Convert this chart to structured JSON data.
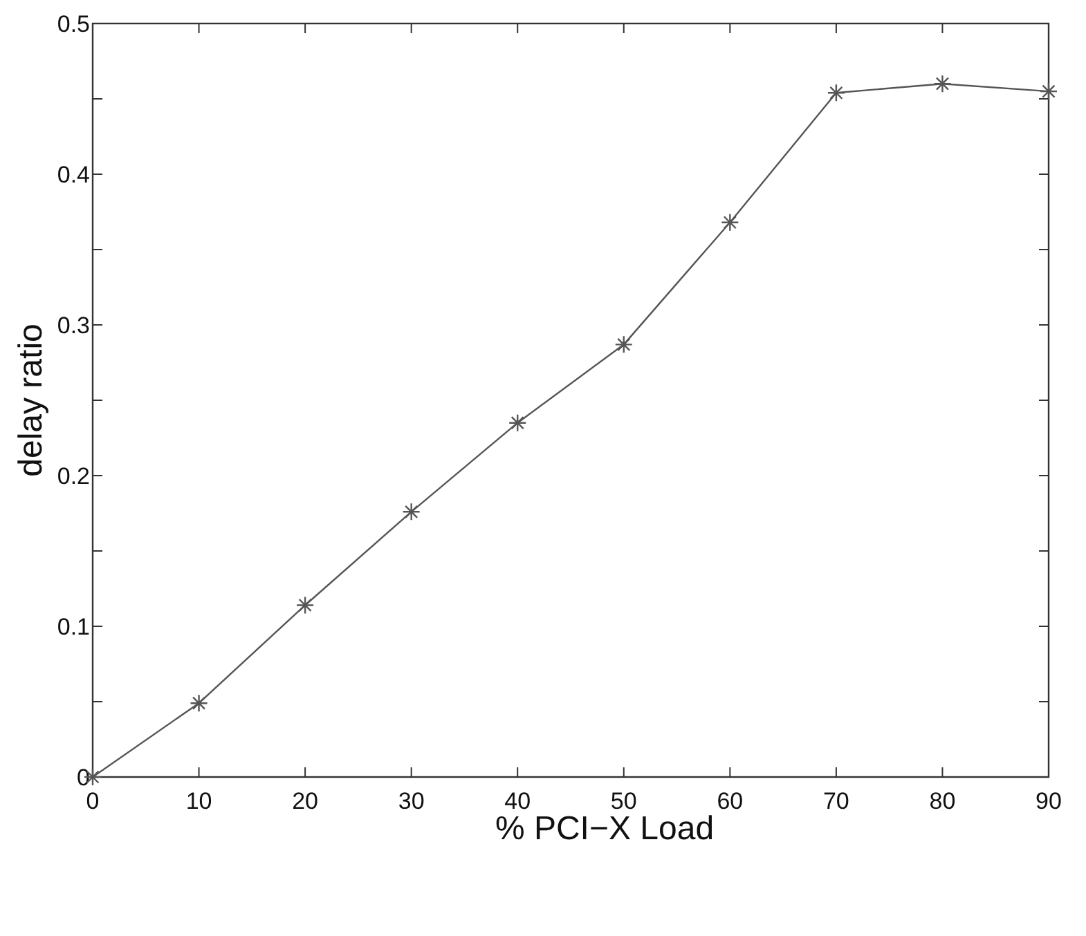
{
  "chart_data": {
    "type": "line",
    "xlabel": "% PCI−X Load",
    "ylabel": "delay ratio",
    "x": [
      0,
      10,
      20,
      30,
      40,
      50,
      60,
      70,
      80,
      90
    ],
    "series": [
      {
        "color": "#555555",
        "values": [
          0,
          0.049,
          0.114,
          0.176,
          0.235,
          0.287,
          0.368,
          0.454,
          0.46,
          0.455
        ]
      }
    ],
    "xlim": [
      0,
      90
    ],
    "xticks": [
      0,
      10,
      20,
      30,
      40,
      50,
      60,
      70,
      80,
      90
    ],
    "ylim": [
      0,
      0.5
    ],
    "yticks": [
      0,
      {
        "value": 0.05,
        "label": null
      },
      0.1,
      {
        "value": 0.15,
        "label": null
      },
      0.2,
      {
        "value": 0.25,
        "label": null
      },
      0.3,
      {
        "value": 0.35,
        "label": null
      },
      0.4,
      {
        "value": 0.45,
        "label": null
      },
      0.5
    ],
    "grid": false,
    "marker": "cross",
    "line_style": "solid"
  }
}
